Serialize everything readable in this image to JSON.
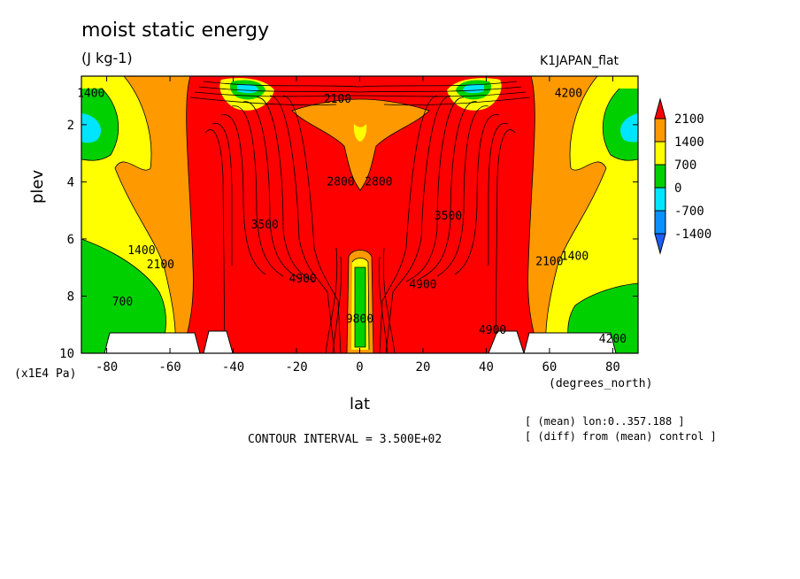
{
  "header": {
    "title": "moist static energy",
    "units": "(J kg-1)",
    "run_name": "K1JAPAN_flat"
  },
  "footer": {
    "contour_interval": "CONTOUR INTERVAL = 3.500E+02",
    "note_mean": "[ (mean) lon:0..357.188 ]",
    "note_diff": "[ (diff) from (mean) control ]"
  },
  "chart_data": {
    "type": "heatmap",
    "title": "moist static energy",
    "xlabel": "lat",
    "xunit": "(degrees_north)",
    "ylabel": "plev",
    "yunit": "(x1E4 Pa)",
    "xlim": [
      -88,
      88
    ],
    "ylim": [
      10,
      0.3
    ],
    "x_ticks": [
      -80,
      -60,
      -40,
      -20,
      0,
      20,
      40,
      60,
      80
    ],
    "x_tick_labels": [
      "-80",
      "-60",
      "-40",
      "-20",
      "0",
      "20",
      "40",
      "60",
      "80"
    ],
    "y_ticks": [
      2,
      4,
      6,
      8,
      10
    ],
    "y_tick_labels": [
      "2",
      "4",
      "6",
      "8",
      "10"
    ],
    "contour_interval": 350,
    "legend": {
      "placement": "right",
      "levels": [
        2100,
        1400,
        700,
        0,
        -700,
        -1400
      ],
      "labels": [
        "2100",
        "1400",
        "700",
        "0",
        "-700",
        "-1400"
      ],
      "colors": [
        "#ff0000",
        "#ff9900",
        "#ffff00",
        "#00d000",
        "#00e5ff",
        "#0a90ff",
        "#1e5eff"
      ]
    },
    "regions": [
      {
        "name": "sh-high-lat-column",
        "x": [
          -88,
          -62
        ],
        "y": [
          1,
          8.5
        ],
        "level": 1400
      },
      {
        "name": "nh-high-lat-column",
        "x": [
          62,
          88
        ],
        "y": [
          1,
          8.5
        ],
        "level": 1400
      },
      {
        "name": "tropical-core",
        "x": [
          -50,
          50
        ],
        "y": [
          0.5,
          10
        ],
        "level": 2100
      }
    ],
    "contour_labels": [
      {
        "text": "2100",
        "x": -7,
        "y": 1.1
      },
      {
        "text": "2800",
        "x": -6,
        "y": 4.0
      },
      {
        "text": "2800",
        "x": 6,
        "y": 4.0
      },
      {
        "text": "1400",
        "x": -69,
        "y": 6.4
      },
      {
        "text": "2100",
        "x": -63,
        "y": 6.9
      },
      {
        "text": "700",
        "x": -75,
        "y": 8.2
      },
      {
        "text": "1400",
        "x": 68,
        "y": 6.6
      },
      {
        "text": "2100",
        "x": 60,
        "y": 6.8
      },
      {
        "text": "4200",
        "x": 80,
        "y": 9.5
      },
      {
        "text": "4200",
        "x": 66,
        "y": 0.9
      },
      {
        "text": "4900",
        "x": 42,
        "y": 9.2
      },
      {
        "text": "3500",
        "x": -30,
        "y": 5.5
      },
      {
        "text": "3500",
        "x": 28,
        "y": 5.2
      },
      {
        "text": "4900",
        "x": -18,
        "y": 7.4
      },
      {
        "text": "4900",
        "x": 20,
        "y": 7.6
      },
      {
        "text": "1400",
        "x": -85,
        "y": 0.9
      },
      {
        "text": "9800",
        "x": 0,
        "y": 8.8
      }
    ]
  }
}
